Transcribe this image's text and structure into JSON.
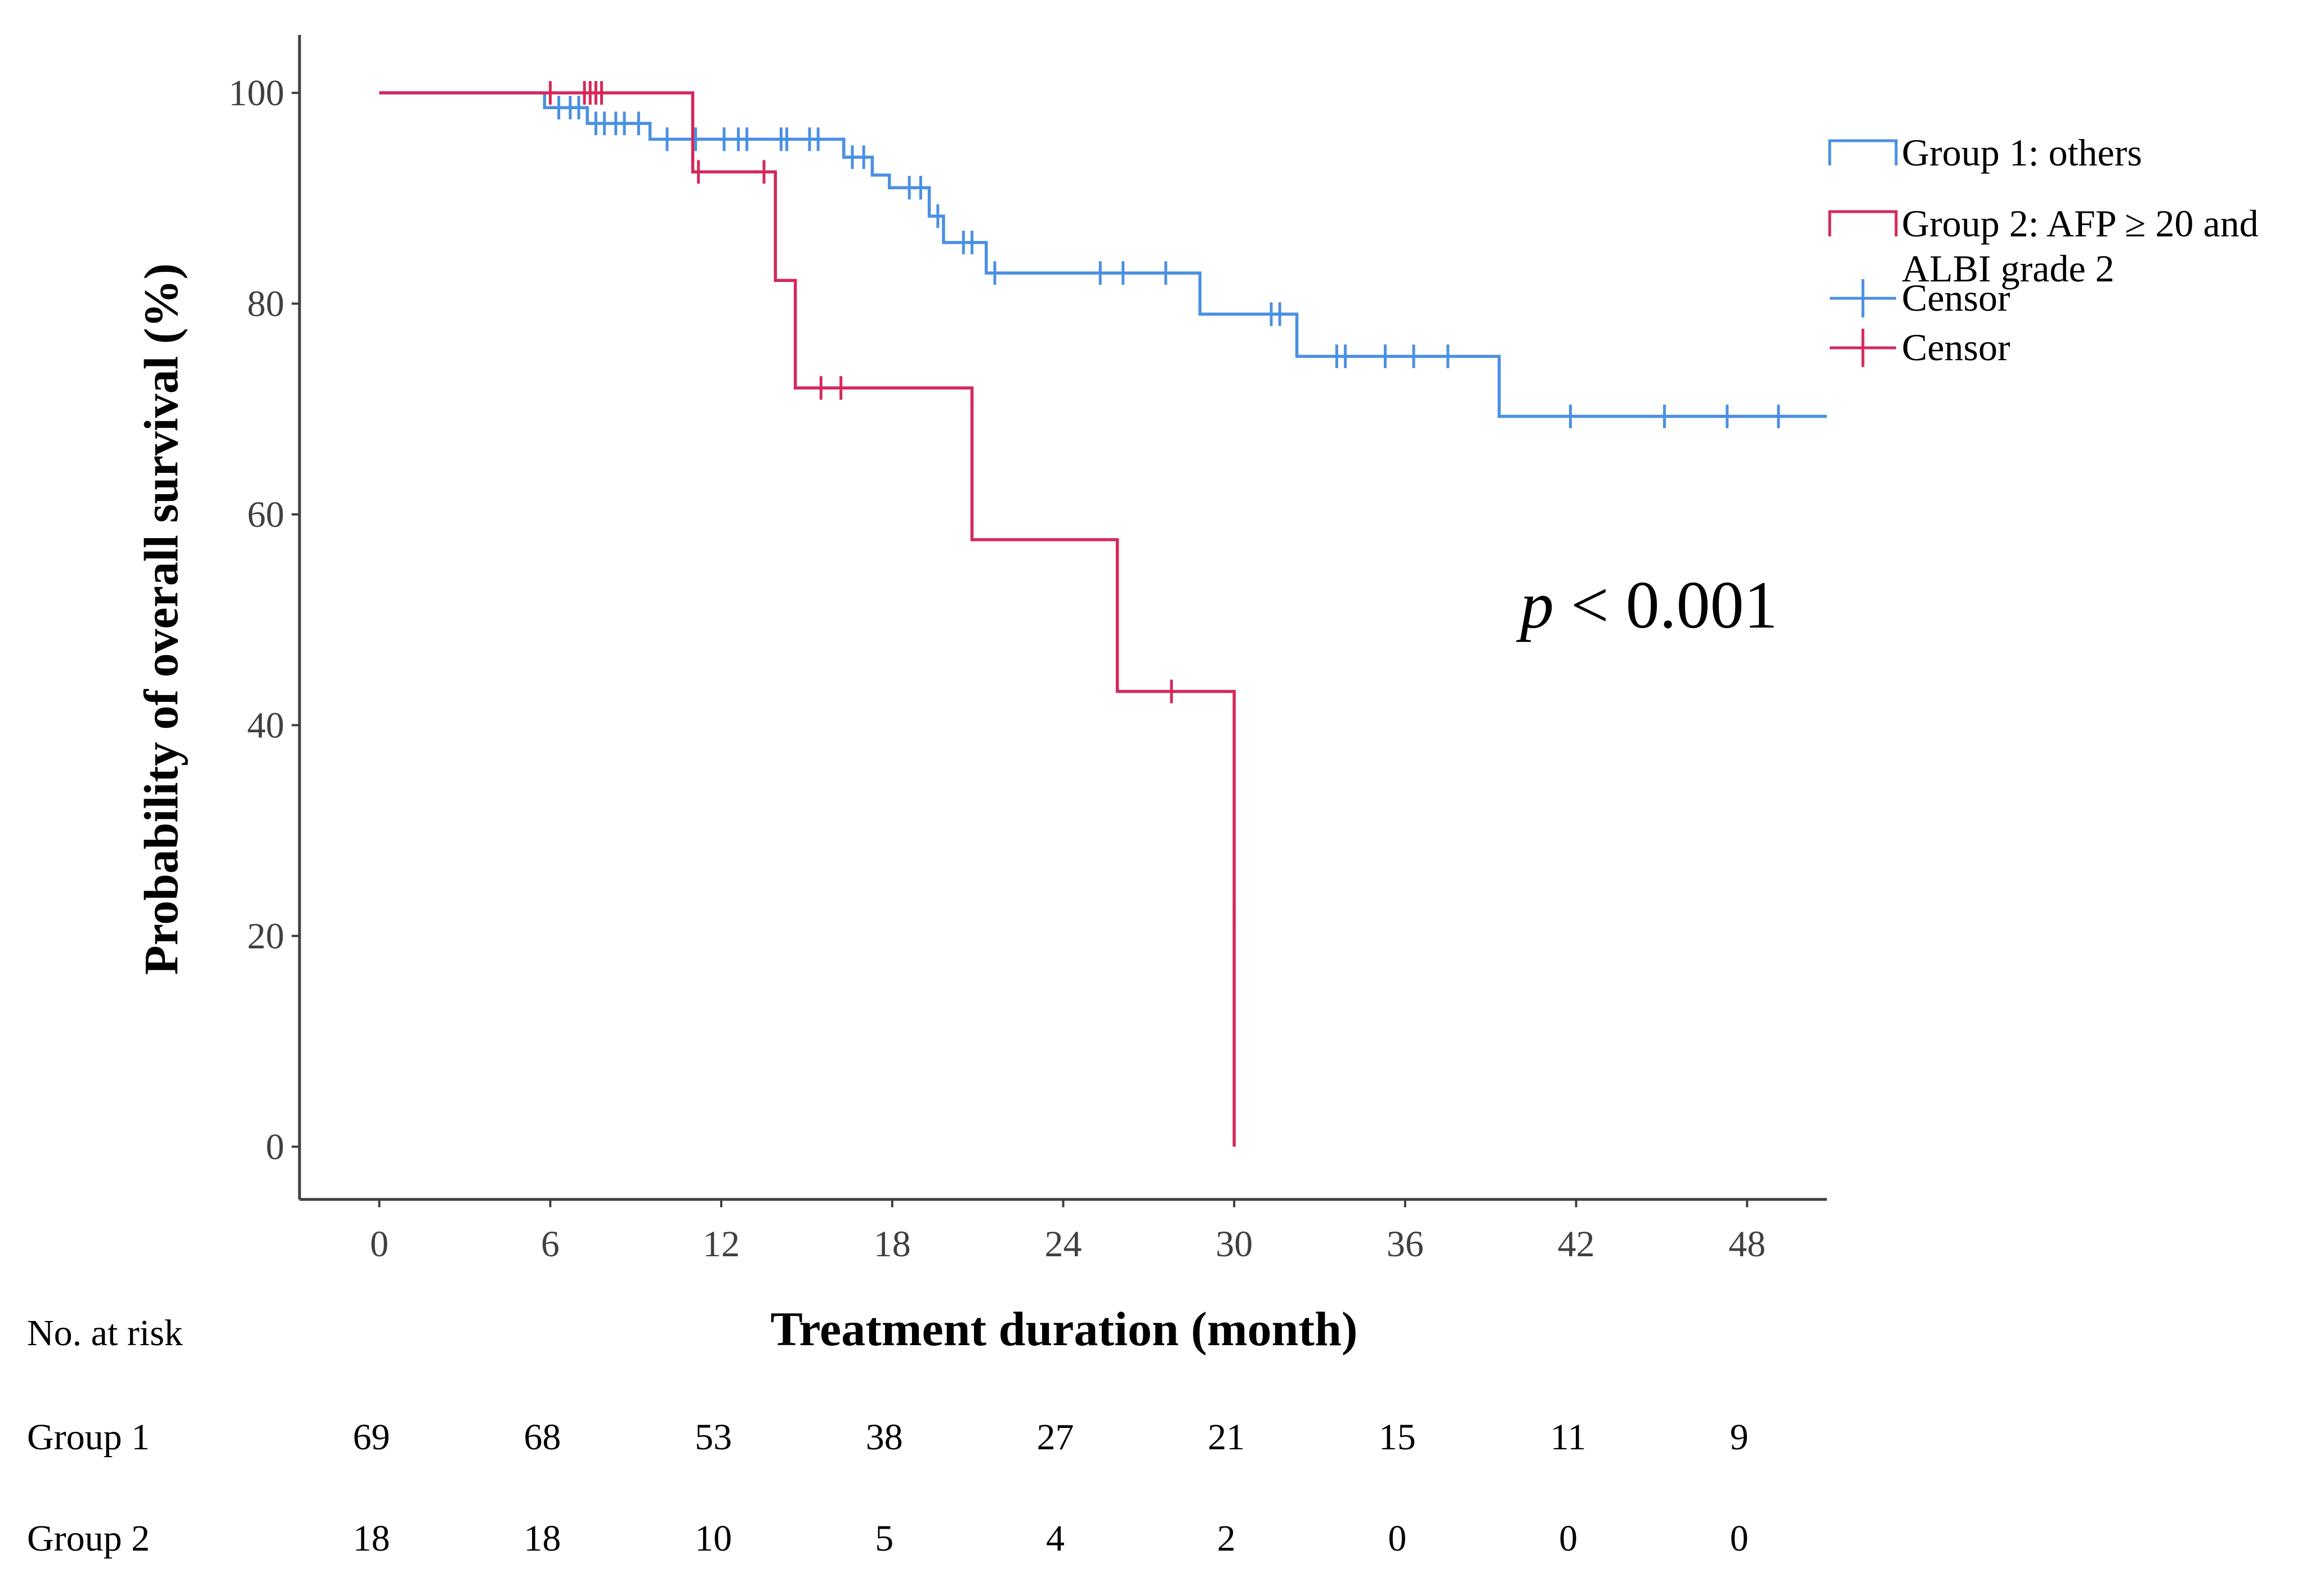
{
  "chart_data": {
    "type": "line",
    "subtype": "kaplan-meier step",
    "title": "",
    "xlabel": "Treatment duration (month)",
    "ylabel": "Probability of overall survival (%)",
    "xlim": [
      -2.8,
      50.8
    ],
    "ylim": [
      -5,
      105.5
    ],
    "x_ticks": [
      0,
      6,
      12,
      18,
      24,
      30,
      36,
      42,
      48
    ],
    "y_ticks": [
      0,
      20,
      40,
      60,
      80,
      100
    ],
    "annotation": {
      "italic": "p",
      "rest": " < 0.001"
    },
    "legend": {
      "position": "top-right",
      "entries": [
        {
          "kind": "line",
          "series": 0,
          "label_lines": [
            "Group 1: others"
          ]
        },
        {
          "kind": "line",
          "series": 1,
          "label_lines": [
            "Group 2: AFP ≥ 20 and",
            "ALBI grade 2"
          ]
        },
        {
          "kind": "censor",
          "series": 0,
          "label_lines": [
            "Censor"
          ]
        },
        {
          "kind": "censor",
          "series": 1,
          "label_lines": [
            "Censor"
          ]
        }
      ]
    },
    "series": [
      {
        "name": "Group 1: others",
        "color": "#4a90e2",
        "steps": [
          [
            0,
            100
          ],
          [
            5.8,
            98.6
          ],
          [
            7.3,
            97.1
          ],
          [
            9.5,
            95.6
          ],
          [
            16.3,
            93.9
          ],
          [
            17.3,
            92.2
          ],
          [
            17.9,
            91.0
          ],
          [
            19.3,
            88.3
          ],
          [
            19.8,
            85.8
          ],
          [
            21.3,
            82.9
          ],
          [
            28.8,
            79.0
          ],
          [
            32.2,
            75.0
          ],
          [
            39.3,
            69.3
          ],
          [
            50.8,
            69.3
          ]
        ],
        "censors": [
          [
            6.3,
            98.6
          ],
          [
            6.7,
            98.6
          ],
          [
            7.0,
            98.6
          ],
          [
            7.6,
            97.1
          ],
          [
            7.9,
            97.1
          ],
          [
            8.3,
            97.1
          ],
          [
            8.6,
            97.1
          ],
          [
            9.1,
            97.1
          ],
          [
            10.1,
            95.6
          ],
          [
            11.1,
            95.6
          ],
          [
            12.1,
            95.6
          ],
          [
            12.6,
            95.6
          ],
          [
            12.9,
            95.6
          ],
          [
            14.1,
            95.6
          ],
          [
            14.3,
            95.6
          ],
          [
            15.1,
            95.6
          ],
          [
            15.4,
            95.6
          ],
          [
            16.6,
            93.9
          ],
          [
            17.0,
            93.9
          ],
          [
            18.6,
            91.0
          ],
          [
            19.0,
            91.0
          ],
          [
            19.6,
            88.3
          ],
          [
            20.5,
            85.8
          ],
          [
            20.8,
            85.8
          ],
          [
            21.6,
            82.9
          ],
          [
            25.3,
            82.9
          ],
          [
            26.1,
            82.9
          ],
          [
            27.6,
            82.9
          ],
          [
            31.3,
            79.0
          ],
          [
            31.6,
            79.0
          ],
          [
            33.6,
            75.0
          ],
          [
            33.9,
            75.0
          ],
          [
            35.3,
            75.0
          ],
          [
            36.3,
            75.0
          ],
          [
            37.5,
            75.0
          ],
          [
            41.8,
            69.3
          ],
          [
            45.1,
            69.3
          ],
          [
            47.3,
            69.3
          ],
          [
            49.1,
            69.3
          ]
        ]
      },
      {
        "name": "Group 2: AFP ≥ 20 and ALBI grade 2",
        "color": "#d6285a",
        "steps": [
          [
            0,
            100
          ],
          [
            11.0,
            92.5
          ],
          [
            13.9,
            82.2
          ],
          [
            14.6,
            72.0
          ],
          [
            20.8,
            57.6
          ],
          [
            25.9,
            43.2
          ],
          [
            30.0,
            0
          ]
        ],
        "censors": [
          [
            6.0,
            100
          ],
          [
            7.2,
            100
          ],
          [
            7.4,
            100
          ],
          [
            7.6,
            100
          ],
          [
            7.8,
            100
          ],
          [
            11.2,
            92.5
          ],
          [
            13.5,
            92.5
          ],
          [
            15.5,
            72.0
          ],
          [
            16.2,
            72.0
          ],
          [
            27.8,
            43.2
          ],
          [
            30.0,
            21.6
          ]
        ]
      }
    ],
    "risk_table": {
      "heading": "No. at risk",
      "times": [
        0,
        6,
        12,
        18,
        24,
        30,
        36,
        42,
        48
      ],
      "rows": [
        {
          "label": "Group 1",
          "values": [
            69,
            68,
            53,
            38,
            27,
            21,
            15,
            11,
            9
          ]
        },
        {
          "label": "Group 2",
          "values": [
            18,
            18,
            10,
            5,
            4,
            2,
            0,
            0,
            0
          ]
        }
      ]
    }
  }
}
